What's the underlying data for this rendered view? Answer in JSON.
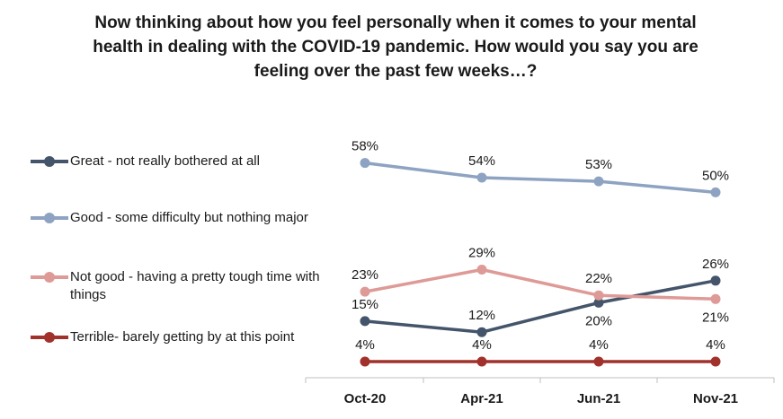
{
  "chart_data": {
    "type": "line",
    "title": "Now thinking about how you feel personally when it comes to your mental\nhealth in dealing with the COVID-19 pandemic. How would you say you are\nfeeling over the past few weeks…?",
    "categories": [
      "Oct-20",
      "Apr-21",
      "Jun-21",
      "Nov-21"
    ],
    "series": [
      {
        "name": "Great - not really bothered at all",
        "values": [
          15,
          12,
          20,
          26
        ],
        "color": "#44546a",
        "labels": [
          "15%",
          "12%",
          "20%",
          "26%"
        ],
        "label_side": [
          "above",
          "above",
          "below",
          "above"
        ]
      },
      {
        "name": "Good - some difficulty but nothing major",
        "values": [
          58,
          54,
          53,
          50
        ],
        "color": "#8ea3c2",
        "labels": [
          "58%",
          "54%",
          "53%",
          "50%"
        ],
        "label_side": [
          "above",
          "above",
          "above",
          "above"
        ]
      },
      {
        "name": "Not good - having a pretty tough time with things",
        "values": [
          23,
          29,
          22,
          21
        ],
        "color": "#de9a96",
        "labels": [
          "23%",
          "29%",
          "22%",
          "21%"
        ],
        "label_side": [
          "above",
          "above",
          "above",
          "below"
        ]
      },
      {
        "name": "Terrible- barely getting by at this point",
        "values": [
          4,
          4,
          4,
          4
        ],
        "color": "#a1312b",
        "labels": [
          "4%",
          "4%",
          "4%",
          "4%"
        ],
        "label_side": [
          "above",
          "above",
          "above",
          "above"
        ]
      }
    ],
    "legend_position": "left",
    "grid": false,
    "ylim": [
      0,
      60
    ]
  }
}
